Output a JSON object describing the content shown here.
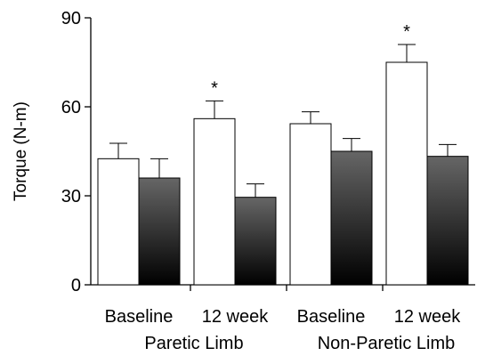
{
  "chart_data": {
    "type": "bar",
    "ylabel": "Torque (N-m)",
    "ylim": [
      0,
      90
    ],
    "yticks": [
      0,
      30,
      60,
      90
    ],
    "grid": false,
    "legend": "none",
    "groups": [
      {
        "label": "Paretic Limb",
        "categories": [
          {
            "label": "Baseline",
            "bars": [
              {
                "fill": "white",
                "value": 42.5,
                "error": 5.2
              },
              {
                "fill": "dark",
                "value": 36,
                "error": 6.5
              }
            ],
            "significance": ""
          },
          {
            "label": "12 week",
            "bars": [
              {
                "fill": "white",
                "value": 56,
                "error": 6
              },
              {
                "fill": "dark",
                "value": 29.5,
                "error": 4.5
              }
            ],
            "significance": "*"
          }
        ]
      },
      {
        "label": "Non-Paretic Limb",
        "categories": [
          {
            "label": "Baseline",
            "bars": [
              {
                "fill": "white",
                "value": 54.3,
                "error": 4
              },
              {
                "fill": "dark",
                "value": 45,
                "error": 4.3
              }
            ],
            "significance": ""
          },
          {
            "label": "12 week",
            "bars": [
              {
                "fill": "white",
                "value": 75,
                "error": 6
              },
              {
                "fill": "dark",
                "value": 43.3,
                "error": 4
              }
            ],
            "significance": "*"
          }
        ]
      }
    ],
    "colors": {
      "white_bar": "#ffffff",
      "dark_top": "#666666",
      "dark_bottom": "#000000",
      "axis": "#000000"
    }
  }
}
